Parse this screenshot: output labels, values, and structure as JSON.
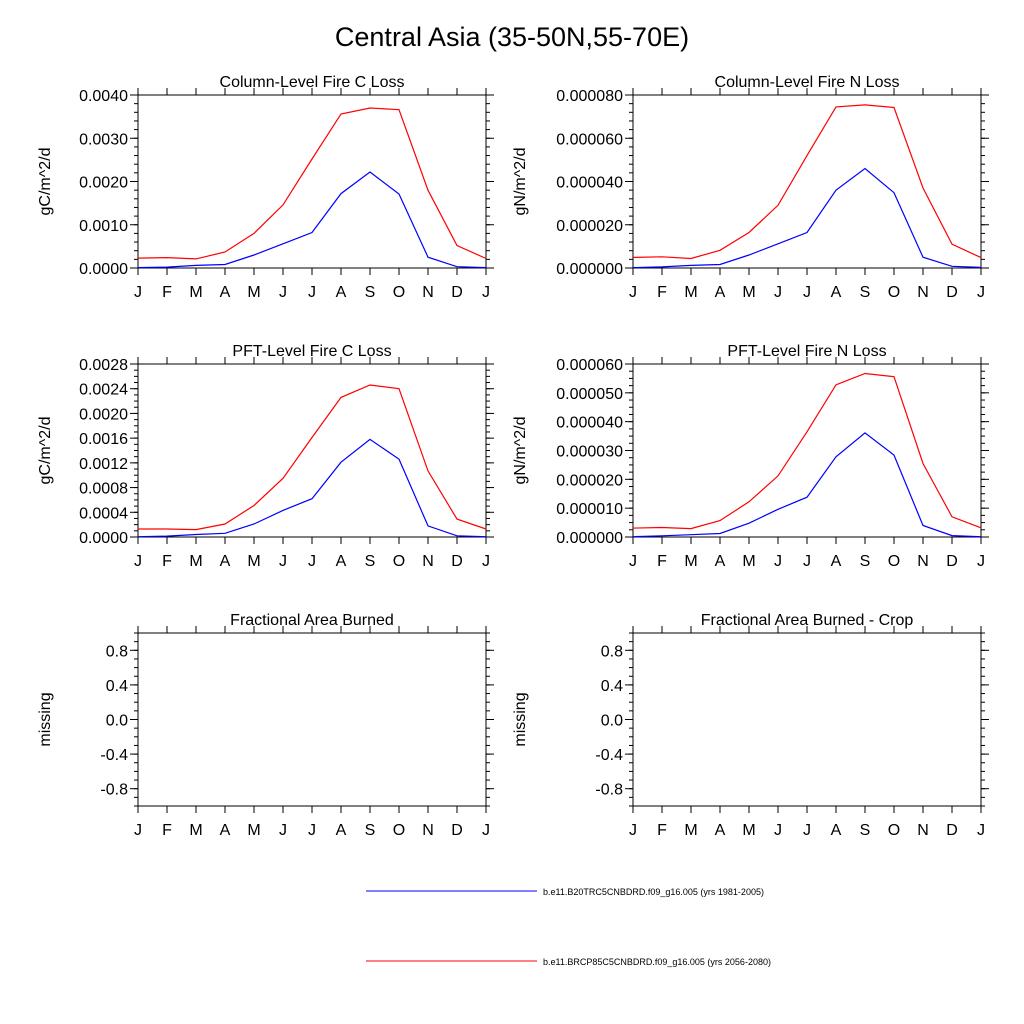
{
  "title": "Central Asia (35-50N,55-70E)",
  "colors": {
    "series_1": "#0000ff",
    "series_2": "#ff0000",
    "axis": "#000000"
  },
  "months": [
    "J",
    "F",
    "M",
    "A",
    "M",
    "J",
    "J",
    "A",
    "S",
    "O",
    "N",
    "D",
    "J"
  ],
  "legend": {
    "placement": "bottom-center",
    "entries": [
      {
        "label": "b.e11.B20TRC5CNBDRD.f09_g16.005 (yrs 1981-2005)",
        "color": "#0000ff"
      },
      {
        "label": "b.e11.BRCP85C5CNBDRD.f09_g16.005 (yrs 2056-2080)",
        "color": "#ff0000"
      }
    ]
  },
  "chart_data": [
    {
      "type": "line",
      "title": "Column-Level Fire C Loss",
      "ylabel": "gC/m^2/d",
      "xlabel": "",
      "x": [
        "J",
        "F",
        "M",
        "A",
        "M",
        "J",
        "J",
        "A",
        "S",
        "O",
        "N",
        "D",
        "J"
      ],
      "ylim": [
        0,
        0.004
      ],
      "yticks": [
        "0.0000",
        "0.0010",
        "0.0020",
        "0.0030",
        "0.0040"
      ],
      "yminor": 4,
      "series": [
        {
          "name": "b.e11.B20TRC5CNBDRD.f09_g16.005 (yrs 1981-2005)",
          "color": "#0000ff",
          "values": [
            1e-05,
            2e-05,
            6e-05,
            8e-05,
            0.0003,
            0.00056,
            0.00082,
            0.00172,
            0.00222,
            0.00171,
            0.00025,
            3e-05,
            1e-05
          ]
        },
        {
          "name": "b.e11.BRCP85C5CNBDRD.f09_g16.005 (yrs 2056-2080)",
          "color": "#ff0000",
          "values": [
            0.00023,
            0.00024,
            0.00021,
            0.00037,
            0.0008,
            0.00146,
            0.00252,
            0.00356,
            0.0037,
            0.00366,
            0.0018,
            0.00052,
            0.00022
          ]
        }
      ]
    },
    {
      "type": "line",
      "title": "Column-Level Fire N Loss",
      "ylabel": "gN/m^2/d",
      "xlabel": "",
      "x": [
        "J",
        "F",
        "M",
        "A",
        "M",
        "J",
        "J",
        "A",
        "S",
        "O",
        "N",
        "D",
        "J"
      ],
      "ylim": [
        0,
        8e-05
      ],
      "yticks": [
        "0.000000",
        "0.000020",
        "0.000040",
        "0.000060",
        "0.000080"
      ],
      "yminor": 4,
      "series": [
        {
          "name": "b.e11.B20TRC5CNBDRD.f09_g16.005 (yrs 1981-2005)",
          "color": "#0000ff",
          "values": [
            2e-07,
            5e-07,
            1.2e-06,
            1.6e-06,
            6e-06,
            1.12e-05,
            1.64e-05,
            3.6e-05,
            4.6e-05,
            3.48e-05,
            5e-06,
            8e-07,
            3e-07
          ]
        },
        {
          "name": "b.e11.BRCP85C5CNBDRD.f09_g16.005 (yrs 2056-2080)",
          "color": "#ff0000",
          "values": [
            4.9e-06,
            5.2e-06,
            4.4e-06,
            8.2e-06,
            1.64e-05,
            2.9e-05,
            5.2e-05,
            7.45e-05,
            7.54e-05,
            7.42e-05,
            3.7e-05,
            1.1e-05,
            4.8e-06
          ]
        }
      ]
    },
    {
      "type": "line",
      "title": "PFT-Level Fire C Loss",
      "ylabel": "gC/m^2/d",
      "xlabel": "",
      "x": [
        "J",
        "F",
        "M",
        "A",
        "M",
        "J",
        "J",
        "A",
        "S",
        "O",
        "N",
        "D",
        "J"
      ],
      "ylim": [
        0,
        0.0028
      ],
      "yticks": [
        "0.0000",
        "0.0004",
        "0.0008",
        "0.0012",
        "0.0016",
        "0.0020",
        "0.0024",
        "0.0028"
      ],
      "yminor": 3,
      "series": [
        {
          "name": "b.e11.B20TRC5CNBDRD.f09_g16.005 (yrs 1981-2005)",
          "color": "#0000ff",
          "values": [
            5e-06,
            1.5e-05,
            4e-05,
            6e-05,
            0.00021,
            0.00043,
            0.00062,
            0.00121,
            0.00158,
            0.00126,
            0.00018,
            2e-05,
            5e-06
          ]
        },
        {
          "name": "b.e11.BRCP85C5CNBDRD.f09_g16.005 (yrs 2056-2080)",
          "color": "#ff0000",
          "values": [
            0.00013,
            0.00013,
            0.00012,
            0.00021,
            0.00051,
            0.00095,
            0.00161,
            0.00226,
            0.00246,
            0.0024,
            0.00107,
            0.00029,
            0.00013
          ]
        }
      ]
    },
    {
      "type": "line",
      "title": "PFT-Level Fire N Loss",
      "ylabel": "gN/m^2/d",
      "xlabel": "",
      "x": [
        "J",
        "F",
        "M",
        "A",
        "M",
        "J",
        "J",
        "A",
        "S",
        "O",
        "N",
        "D",
        "J"
      ],
      "ylim": [
        0,
        6e-05
      ],
      "yticks": [
        "0.000000",
        "0.000010",
        "0.000020",
        "0.000030",
        "0.000040",
        "0.000050",
        "0.000060"
      ],
      "yminor": 3,
      "series": [
        {
          "name": "b.e11.B20TRC5CNBDRD.f09_g16.005 (yrs 1981-2005)",
          "color": "#0000ff",
          "values": [
            1e-07,
            4e-07,
            8e-07,
            1.2e-06,
            4.8e-06,
            9.6e-06,
            1.38e-05,
            2.78e-05,
            3.61e-05,
            2.84e-05,
            4e-06,
            5e-07,
            1e-07
          ]
        },
        {
          "name": "b.e11.BRCP85C5CNBDRD.f09_g16.005 (yrs 2056-2080)",
          "color": "#ff0000",
          "values": [
            3.1e-06,
            3.3e-06,
            2.9e-06,
            5.7e-06,
            1.22e-05,
            2.12e-05,
            3.65e-05,
            5.28e-05,
            5.67e-05,
            5.56e-05,
            2.55e-05,
            7e-06,
            3.2e-06
          ]
        }
      ]
    },
    {
      "type": "line",
      "title": "Fractional Area Burned",
      "ylabel": "missing",
      "xlabel": "",
      "x": [
        "J",
        "F",
        "M",
        "A",
        "M",
        "J",
        "J",
        "A",
        "S",
        "O",
        "N",
        "D",
        "J"
      ],
      "ylim": [
        -1,
        1
      ],
      "yticks": [
        "-0.8",
        "-0.4",
        "0.0",
        "0.4",
        "0.8"
      ],
      "ytickvals": [
        -0.8,
        -0.4,
        0.0,
        0.4,
        0.8
      ],
      "yminor": 3,
      "series": []
    },
    {
      "type": "line",
      "title": "Fractional Area Burned - Crop",
      "ylabel": "missing",
      "xlabel": "",
      "x": [
        "J",
        "F",
        "M",
        "A",
        "M",
        "J",
        "J",
        "A",
        "S",
        "O",
        "N",
        "D",
        "J"
      ],
      "ylim": [
        -1,
        1
      ],
      "yticks": [
        "-0.8",
        "-0.4",
        "0.0",
        "0.4",
        "0.8"
      ],
      "ytickvals": [
        -0.8,
        -0.4,
        0.0,
        0.4,
        0.8
      ],
      "yminor": 3,
      "series": []
    }
  ]
}
